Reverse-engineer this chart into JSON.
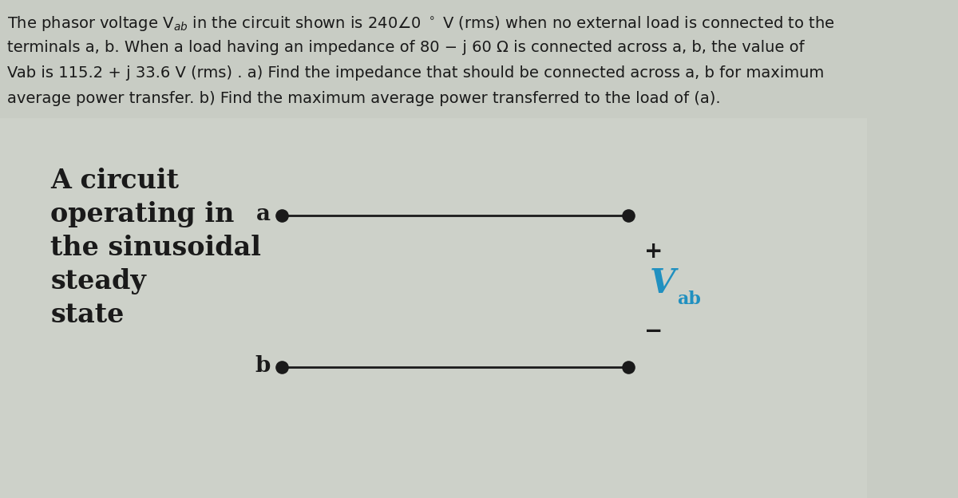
{
  "bg_color": "#c8ccc4",
  "circuit_bg_color": "#d8ddd4",
  "text_color": "#1a1a1a",
  "vab_color": "#2090c0",
  "line_color": "#1a1a1a",
  "node_color": "#1a1a1a",
  "plus_minus_color": "#1a1a1a",
  "font_size_paragraph": 14.0,
  "font_size_circuit": 24,
  "font_size_nodes": 20,
  "font_size_vab_V": 30,
  "font_size_vab_ab": 16,
  "font_size_plusminus": 20,
  "para_line1": "The phasor voltage V$_{ab}$ in the circuit shown is 240$\\angle$0 $^\\circ$ V (rms) when no external load is connected to the",
  "para_line2": "terminals a, b. When a load having an impedance of 80 − j 60 Ω is connected across a, b, the value of",
  "para_line3": "Vab is 115.2 + j 33.6 V (rms) . a) Find the impedance that should be connected across a, b for maximum",
  "para_line4": "average power transfer. b) Find the maximum average power transferred to the load of (a).",
  "circuit_text": "A circuit\noperating in\nthe sinusoidal\nsteady\nstate",
  "node_a": "a",
  "node_b": "b",
  "vab_V": "V",
  "vab_ab": "ab",
  "plus": "+",
  "minus": "−"
}
